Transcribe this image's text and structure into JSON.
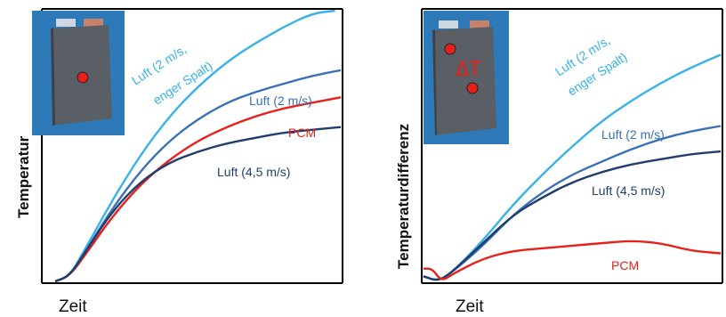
{
  "colors": {
    "luft_narrow": "#38b2e6",
    "luft_2": "#3a70b8",
    "luft_45": "#1f3d6e",
    "pcm": "#e8201a",
    "inset_bg": "#2e7ab8",
    "marker": "#e8201a"
  },
  "chart_data": [
    {
      "type": "line",
      "xlabel": "Zeit",
      "ylabel": "Temperatur",
      "xlim": [
        0,
        1
      ],
      "ylim": [
        0,
        1
      ],
      "grid": false,
      "series": [
        {
          "name": "Luft (2 m/s,\nenger Spalt)",
          "color": "#38b2e6",
          "x": [
            0,
            0.05,
            0.1,
            0.2,
            0.3,
            0.4,
            0.5,
            0.6,
            0.7,
            0.8,
            0.9,
            0.98
          ],
          "y": [
            0,
            0.02,
            0.11,
            0.3,
            0.47,
            0.61,
            0.72,
            0.81,
            0.88,
            0.94,
            0.99,
            1.0
          ]
        },
        {
          "name": "Luft (2 m/s)",
          "color": "#3a70b8",
          "x": [
            0,
            0.05,
            0.1,
            0.2,
            0.3,
            0.4,
            0.5,
            0.6,
            0.7,
            0.8,
            0.9,
            1.0
          ],
          "y": [
            0,
            0.02,
            0.1,
            0.27,
            0.41,
            0.52,
            0.6,
            0.66,
            0.7,
            0.73,
            0.76,
            0.78
          ]
        },
        {
          "name": "PCM",
          "color": "#e8201a",
          "x": [
            0,
            0.05,
            0.1,
            0.2,
            0.3,
            0.4,
            0.5,
            0.6,
            0.7,
            0.8,
            0.9,
            1.0
          ],
          "y": [
            0,
            0.02,
            0.09,
            0.24,
            0.36,
            0.45,
            0.52,
            0.57,
            0.61,
            0.64,
            0.66,
            0.68
          ]
        },
        {
          "name": "Luft (4,5 m/s)",
          "color": "#1f3d6e",
          "x": [
            0,
            0.05,
            0.1,
            0.2,
            0.3,
            0.4,
            0.5,
            0.6,
            0.7,
            0.8,
            0.9,
            1.0
          ],
          "y": [
            0,
            0.02,
            0.1,
            0.26,
            0.37,
            0.44,
            0.48,
            0.51,
            0.53,
            0.55,
            0.56,
            0.57
          ]
        }
      ]
    },
    {
      "type": "line",
      "xlabel": "Zeit",
      "ylabel": "Temperaturdifferenz",
      "xlim": [
        0,
        1
      ],
      "ylim": [
        0,
        1
      ],
      "grid": false,
      "annotation": "ΔT",
      "series": [
        {
          "name": "Luft (2 m/s,\nenger Spalt)",
          "color": "#38b2e6",
          "x": [
            0,
            0.05,
            0.1,
            0.2,
            0.3,
            0.4,
            0.5,
            0.6,
            0.7,
            0.8,
            0.9,
            1.0
          ],
          "y": [
            0.02,
            0.0,
            0.04,
            0.16,
            0.3,
            0.42,
            0.53,
            0.63,
            0.71,
            0.78,
            0.84,
            0.89
          ]
        },
        {
          "name": "Luft (2 m/s)",
          "color": "#3a70b8",
          "x": [
            0,
            0.05,
            0.1,
            0.2,
            0.3,
            0.4,
            0.5,
            0.6,
            0.7,
            0.8,
            0.9,
            1.0
          ],
          "y": [
            0.02,
            0.0,
            0.04,
            0.14,
            0.26,
            0.35,
            0.42,
            0.47,
            0.52,
            0.56,
            0.59,
            0.61
          ]
        },
        {
          "name": "Luft (4,5 m/s)",
          "color": "#1f3d6e",
          "x": [
            0,
            0.05,
            0.1,
            0.2,
            0.3,
            0.4,
            0.5,
            0.6,
            0.7,
            0.8,
            0.9,
            1.0
          ],
          "y": [
            0.02,
            0.0,
            0.04,
            0.15,
            0.26,
            0.33,
            0.39,
            0.43,
            0.46,
            0.48,
            0.5,
            0.51
          ]
        },
        {
          "name": "PCM",
          "color": "#e8201a",
          "x": [
            0,
            0.03,
            0.06,
            0.1,
            0.2,
            0.3,
            0.4,
            0.5,
            0.6,
            0.7,
            0.8,
            0.9,
            1.0
          ],
          "y": [
            0.05,
            0.05,
            0.0,
            0.03,
            0.09,
            0.12,
            0.13,
            0.14,
            0.15,
            0.16,
            0.15,
            0.12,
            0.11
          ]
        }
      ]
    }
  ]
}
